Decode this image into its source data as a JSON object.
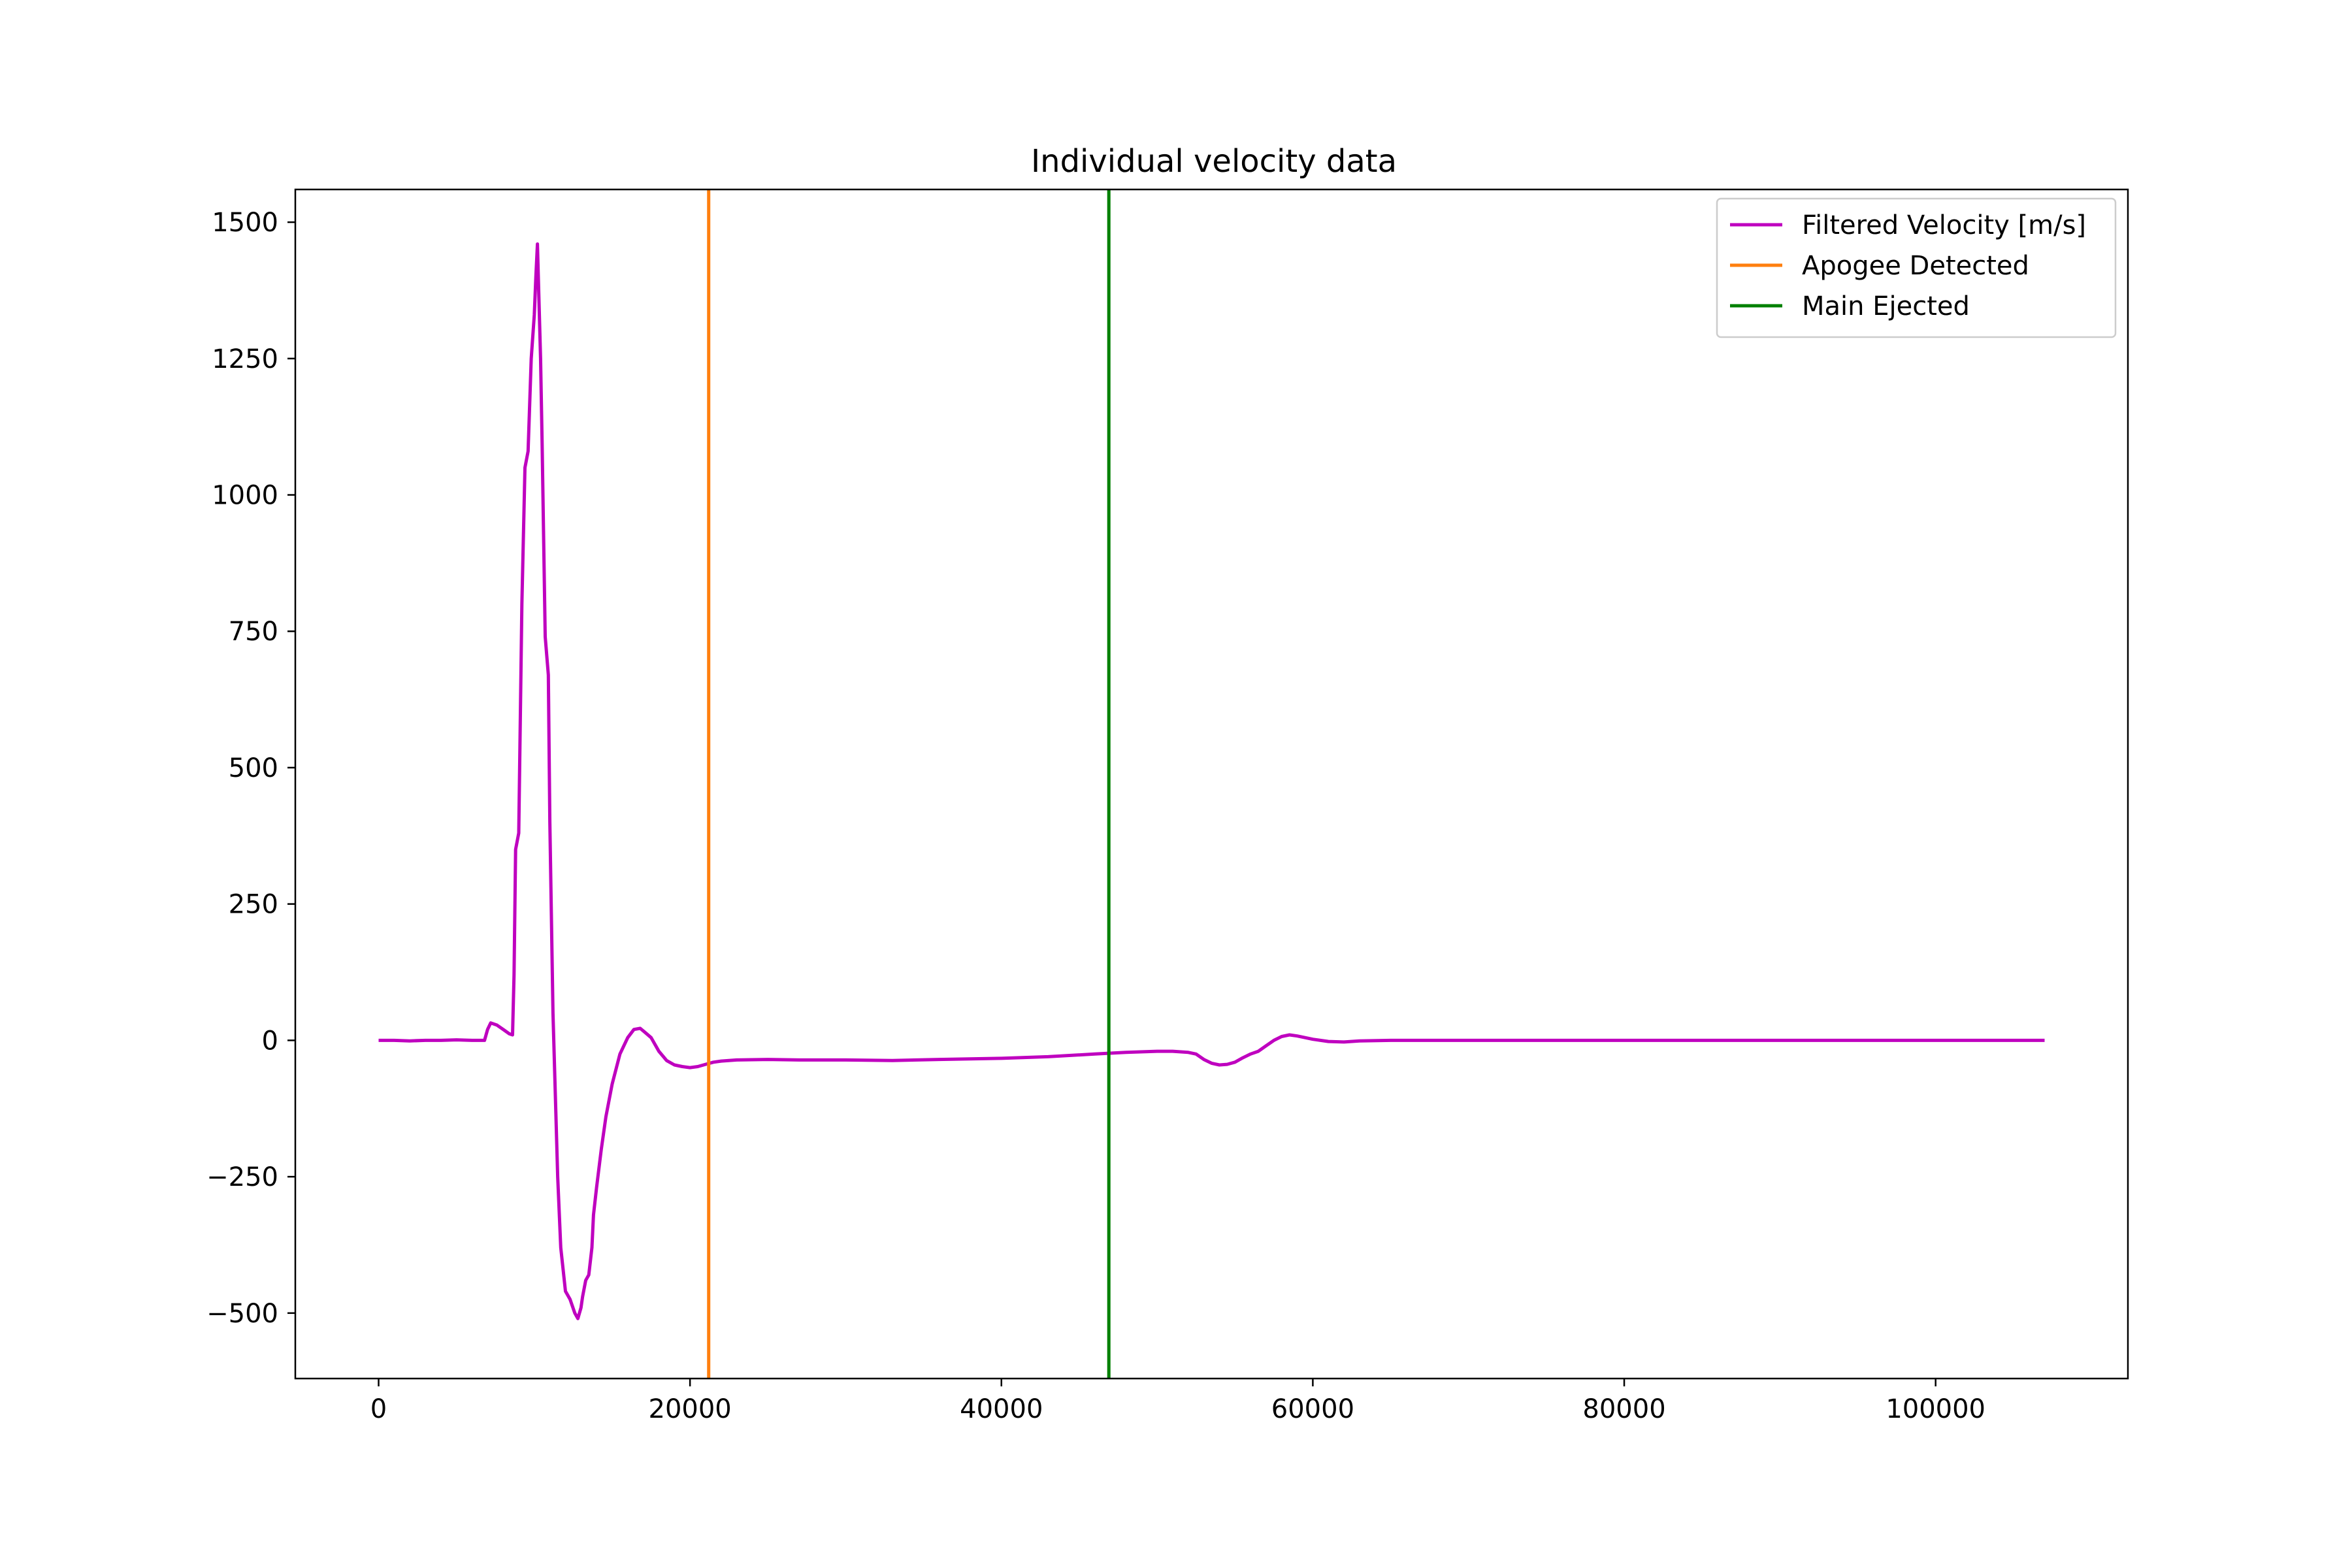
{
  "chart_data": {
    "type": "line",
    "title": "Individual velocity data",
    "xlabel": "",
    "ylabel": "",
    "xlim": [
      -5350,
      112350
    ],
    "ylim": [
      -620,
      1560
    ],
    "xticks": [
      0,
      20000,
      40000,
      60000,
      80000,
      100000
    ],
    "xtick_labels": [
      "0",
      "20000",
      "40000",
      "60000",
      "80000",
      "100000"
    ],
    "yticks": [
      -500,
      -250,
      0,
      250,
      500,
      750,
      1000,
      1250,
      1500
    ],
    "ytick_labels": [
      "−500",
      "−250",
      "0",
      "250",
      "500",
      "750",
      "1000",
      "1250",
      "1500"
    ],
    "grid": false,
    "legend_position": "top-right",
    "series": [
      {
        "name": "Filtered Velocity [m/s]",
        "color": "#bf00bf",
        "x": [
          0,
          1000,
          2000,
          3000,
          4000,
          5000,
          6000,
          6800,
          7000,
          7200,
          7600,
          8000,
          8400,
          8600,
          8700,
          8800,
          9000,
          9200,
          9400,
          9600,
          9800,
          10000,
          10100,
          10200,
          10400,
          10500,
          10700,
          10900,
          11000,
          11200,
          11500,
          11700,
          12000,
          12300,
          12600,
          12800,
          13000,
          13100,
          13300,
          13500,
          13700,
          13800,
          14000,
          14300,
          14600,
          15000,
          15500,
          16000,
          16400,
          16800,
          17100,
          17500,
          18000,
          18500,
          19000,
          19500,
          20000,
          20500,
          21000,
          21500,
          22000,
          23000,
          25000,
          27000,
          30000,
          33000,
          36000,
          40000,
          43000,
          46000,
          48000,
          50000,
          51000,
          52000,
          52500,
          53000,
          53500,
          54000,
          54500,
          55000,
          55500,
          56000,
          56500,
          57000,
          57500,
          58000,
          58500,
          59000,
          59500,
          60000,
          61000,
          62000,
          63000,
          65000,
          70000,
          80000,
          90000,
          100000,
          107000
        ],
        "y": [
          0,
          0,
          -1,
          0,
          0,
          1,
          0,
          0,
          20,
          32,
          28,
          20,
          12,
          10,
          120,
          350,
          380,
          800,
          1050,
          1080,
          1250,
          1330,
          1400,
          1460,
          1250,
          1100,
          740,
          670,
          400,
          50,
          -250,
          -380,
          -460,
          -475,
          -500,
          -510,
          -490,
          -470,
          -440,
          -430,
          -380,
          -320,
          -270,
          -200,
          -140,
          -80,
          -25,
          5,
          20,
          22,
          15,
          5,
          -20,
          -37,
          -45,
          -48,
          -50,
          -48,
          -44,
          -40,
          -38,
          -36,
          -35,
          -36,
          -36,
          -37,
          -35,
          -33,
          -30,
          -25,
          -22,
          -20,
          -20,
          -22,
          -25,
          -35,
          -42,
          -45,
          -44,
          -40,
          -32,
          -25,
          -20,
          -10,
          0,
          7,
          10,
          8,
          5,
          2,
          -2,
          -3,
          -1,
          0,
          0,
          0,
          0,
          0,
          0
        ]
      },
      {
        "name": "Apogee Detected",
        "color": "#ff7f0e",
        "type": "vline",
        "x": 21200
      },
      {
        "name": "Main Ejected",
        "color": "#008000",
        "type": "vline",
        "x": 46900
      }
    ]
  }
}
